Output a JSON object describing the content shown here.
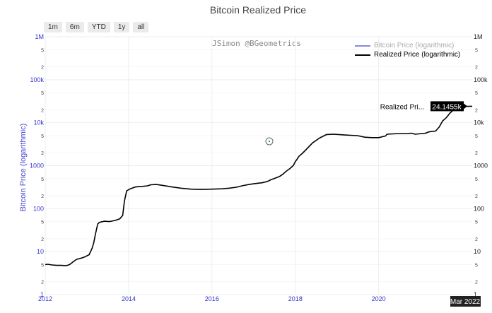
{
  "header": {
    "title": "Bitcoin Realized Price"
  },
  "range_buttons": [
    "1m",
    "6m",
    "YTD",
    "1y",
    "all"
  ],
  "watermark": "JSimon @BGeometrics",
  "colors": {
    "realized": "#000000",
    "btc_price": "#8888dd",
    "axis_left": "#3333cc",
    "grid": "#eeeeee"
  },
  "chart_data": {
    "type": "line",
    "title": "Bitcoin Realized Price",
    "ylabel": "Bitcoin Price (logarithmic)",
    "y_scale": "log",
    "ylim": [
      1,
      1000000
    ],
    "xlim": [
      "2012-01-01",
      "2022-03-31"
    ],
    "x_ticks": [
      "2012",
      "2014",
      "2016",
      "2018",
      "2020"
    ],
    "y_ticks_major": [
      "1",
      "10",
      "100",
      "1000",
      "10k",
      "100k",
      "1M"
    ],
    "y_ticks_minor": [
      "2",
      "5"
    ],
    "legend": [
      "Bitcoin Price (logarithmic)",
      "Realized Price (logarithmic)"
    ],
    "legend_placement": "top-right",
    "hover_label": {
      "series": "Realized Pri...",
      "value": "24.1455k",
      "date": "Mar 2022"
    },
    "series": [
      {
        "name": "Bitcoin Price (logarithmic)",
        "visible": false,
        "x": [],
        "y": []
      },
      {
        "name": "Realized Price (logarithmic)",
        "visible": true,
        "x": [
          "2012-01-01",
          "2012-01-20",
          "2012-03-01",
          "2012-04-10",
          "2012-05-20",
          "2012-07-01",
          "2012-08-01",
          "2012-09-01",
          "2012-10-01",
          "2012-11-15",
          "2012-12-20",
          "2013-01-20",
          "2013-02-15",
          "2013-03-01",
          "2013-03-15",
          "2013-04-05",
          "2013-04-20",
          "2013-06-01",
          "2013-07-15",
          "2013-09-01",
          "2013-10-15",
          "2013-11-10",
          "2013-11-25",
          "2013-12-15",
          "2014-01-15",
          "2014-03-01",
          "2014-05-01",
          "2014-06-15",
          "2014-07-15",
          "2014-09-01",
          "2014-11-01",
          "2015-01-15",
          "2015-04-01",
          "2015-07-01",
          "2015-10-01",
          "2016-01-01",
          "2016-04-01",
          "2016-06-01",
          "2016-08-01",
          "2016-10-01",
          "2016-12-01",
          "2017-02-01",
          "2017-03-15",
          "2017-05-01",
          "2017-06-01",
          "2017-07-15",
          "2017-08-15",
          "2017-09-15",
          "2017-10-15",
          "2017-11-15",
          "2017-12-15",
          "2018-01-01",
          "2018-01-15",
          "2018-02-01",
          "2018-03-01",
          "2018-04-01",
          "2018-06-01",
          "2018-08-01",
          "2018-10-01",
          "2018-12-01",
          "2019-03-01",
          "2019-05-01",
          "2019-07-01",
          "2019-09-01",
          "2019-11-01",
          "2020-01-01",
          "2020-03-01",
          "2020-03-15",
          "2020-05-01",
          "2020-07-01",
          "2020-09-01",
          "2020-10-15",
          "2020-11-15",
          "2020-12-15",
          "2021-01-15",
          "2021-02-15",
          "2021-03-15",
          "2021-04-15",
          "2021-05-15",
          "2021-06-15",
          "2021-07-15",
          "2021-08-15",
          "2021-09-15",
          "2021-10-15",
          "2021-11-15",
          "2021-12-15",
          "2022-01-15",
          "2022-02-15",
          "2022-03-31"
        ],
        "y": [
          5.0,
          5.1,
          4.9,
          4.8,
          4.8,
          4.7,
          5.0,
          5.8,
          6.6,
          7.1,
          7.7,
          8.5,
          12,
          16,
          25,
          44,
          48,
          51,
          50,
          53,
          58,
          70,
          150,
          260,
          290,
          320,
          330,
          340,
          360,
          365,
          345,
          320,
          300,
          285,
          280,
          285,
          290,
          300,
          315,
          345,
          370,
          390,
          400,
          430,
          470,
          520,
          560,
          640,
          750,
          860,
          1020,
          1250,
          1400,
          1650,
          1900,
          2300,
          3400,
          4400,
          5300,
          5400,
          5200,
          5100,
          5000,
          4600,
          4500,
          4500,
          4900,
          5400,
          5500,
          5600,
          5600,
          5700,
          5400,
          5500,
          5600,
          5700,
          6100,
          6300,
          6400,
          8000,
          11000,
          13000,
          16500,
          19500,
          21500,
          22500,
          23500,
          24000,
          24145
        ]
      }
    ]
  }
}
